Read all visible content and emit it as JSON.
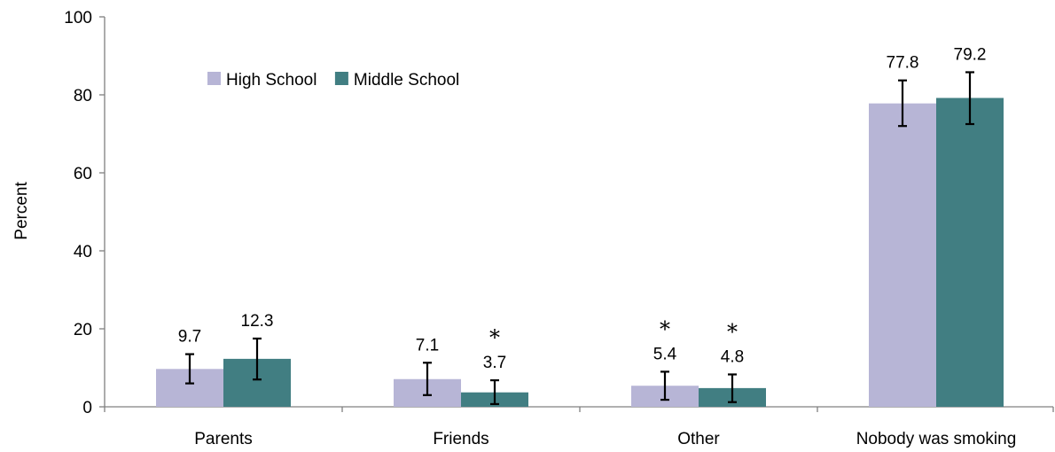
{
  "chart_data": {
    "type": "bar",
    "title": "",
    "xlabel": "",
    "ylabel": "Percent",
    "ylim": [
      0,
      100
    ],
    "yticks": [
      0,
      20,
      40,
      60,
      80,
      100
    ],
    "grid": false,
    "legend_position": "top-left",
    "categories": [
      "Parents",
      "Friends",
      "Other",
      "Nobody was smoking"
    ],
    "series": [
      {
        "name": "High School",
        "color": "#b7b5d6",
        "values": [
          9.7,
          7.1,
          5.4,
          77.8
        ],
        "ci_low": [
          6.0,
          3.0,
          1.8,
          72.0
        ],
        "ci_high": [
          13.5,
          11.3,
          9.0,
          83.7
        ],
        "labels": [
          "9.7",
          "7.1",
          "5.4",
          "77.8"
        ],
        "flagged": [
          false,
          false,
          true,
          false
        ]
      },
      {
        "name": "Middle School",
        "color": "#417e82",
        "values": [
          12.3,
          3.7,
          4.8,
          79.2
        ],
        "ci_low": [
          7.0,
          0.7,
          1.2,
          72.5
        ],
        "ci_high": [
          17.5,
          6.8,
          8.3,
          85.8
        ],
        "labels": [
          "12.3",
          "3.7",
          "4.8",
          "79.2"
        ],
        "flagged": [
          false,
          true,
          true,
          false
        ]
      }
    ],
    "flag_symbol": "*"
  }
}
